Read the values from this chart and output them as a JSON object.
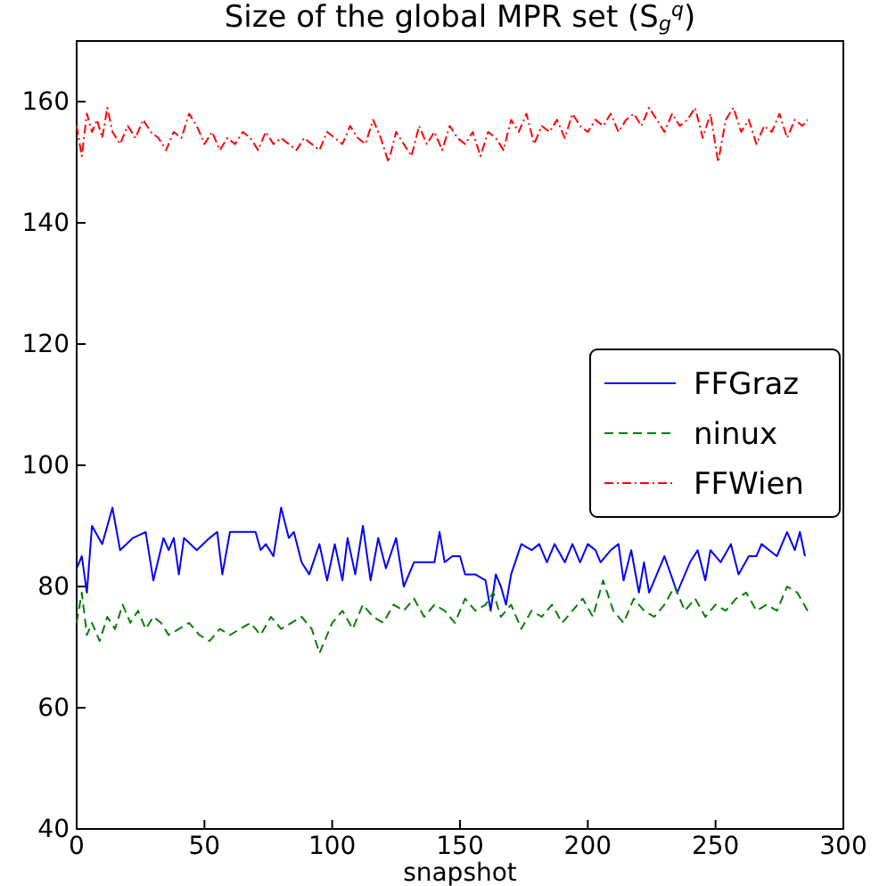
{
  "chart_data": {
    "type": "line",
    "title": "Size of the global MPR set (S$_{g}$$^{q}$)",
    "xlabel": "snapshot",
    "xlim": [
      0,
      300
    ],
    "ylim": [
      40,
      170
    ],
    "xticks": [
      0,
      50,
      100,
      150,
      200,
      250,
      300
    ],
    "yticks": [
      40,
      60,
      80,
      100,
      120,
      140,
      160
    ],
    "legend": "right",
    "grid": false,
    "series": [
      {
        "name": "FFGraz",
        "color": "#0000ff",
        "line_style": "solid",
        "x": [
          0,
          2,
          4,
          6,
          10,
          14,
          17,
          22,
          27,
          30,
          34,
          36,
          38,
          40,
          42,
          47,
          52,
          55,
          57,
          60,
          70,
          72,
          74,
          77,
          80,
          83,
          85,
          88,
          91,
          95,
          98,
          101,
          104,
          106,
          109,
          112,
          115,
          118,
          121,
          125,
          128,
          132,
          140,
          142,
          144,
          147,
          150,
          152,
          156,
          160,
          162,
          164,
          166,
          168,
          170,
          174,
          178,
          181,
          184,
          187,
          191,
          194,
          197,
          200,
          203,
          205,
          209,
          212,
          214,
          217,
          220,
          222,
          224,
          227,
          230,
          235,
          240,
          243,
          246,
          248,
          252,
          256,
          259,
          263,
          266,
          268,
          271,
          274,
          278,
          281,
          283,
          285
        ],
        "values": [
          83,
          85,
          79,
          90,
          87,
          93,
          86,
          88,
          89,
          81,
          88,
          86,
          88,
          82,
          88,
          86,
          88,
          89,
          82,
          89,
          89,
          86,
          87,
          85,
          93,
          88,
          89,
          84,
          82,
          87,
          81,
          87,
          81,
          88,
          82,
          90,
          81,
          88,
          83,
          88,
          80,
          84,
          84,
          89,
          84,
          85,
          85,
          82,
          82,
          81,
          76,
          82,
          80,
          77,
          82,
          87,
          86,
          87,
          84,
          87,
          84,
          87,
          84,
          87,
          86,
          84,
          86,
          87,
          81,
          86,
          79,
          84,
          79,
          82,
          85,
          79,
          84,
          86,
          81,
          86,
          84,
          87,
          82,
          85,
          85,
          87,
          86,
          85,
          89,
          86,
          89,
          85
        ]
      },
      {
        "name": "ninux",
        "color": "#008000",
        "line_style": "dashed",
        "x": [
          0,
          2,
          4,
          6,
          9,
          12,
          15,
          18,
          21,
          24,
          27,
          30,
          33,
          36,
          40,
          44,
          48,
          52,
          56,
          60,
          64,
          68,
          72,
          76,
          80,
          84,
          88,
          92,
          95,
          97,
          100,
          104,
          108,
          112,
          116,
          120,
          124,
          128,
          132,
          136,
          140,
          144,
          148,
          152,
          156,
          160,
          163,
          166,
          170,
          174,
          178,
          182,
          186,
          190,
          194,
          198,
          202,
          206,
          210,
          214,
          218,
          222,
          226,
          230,
          234,
          238,
          242,
          246,
          250,
          254,
          258,
          262,
          266,
          270,
          274,
          278,
          282,
          286
        ],
        "values": [
          74,
          79,
          72,
          74,
          71,
          75,
          73,
          77,
          74,
          76,
          73,
          75,
          74,
          72,
          73,
          74,
          72,
          71,
          73,
          72,
          73,
          74,
          72,
          75,
          73,
          74,
          75,
          73,
          69,
          71,
          74,
          76,
          73,
          77,
          75,
          74,
          77,
          76,
          78,
          75,
          77,
          76,
          74,
          78,
          76,
          77,
          79,
          75,
          77,
          73,
          76,
          75,
          77,
          74,
          76,
          78,
          75,
          81,
          76,
          74,
          78,
          76,
          75,
          77,
          80,
          76,
          78,
          75,
          77,
          76,
          78,
          79,
          76,
          77,
          76,
          80,
          79,
          76
        ]
      },
      {
        "name": "FFWien",
        "color": "#ff0000",
        "line_style": "dashdot",
        "x": [
          0,
          2,
          4,
          6,
          8,
          10,
          12,
          14,
          17,
          20,
          23,
          26,
          29,
          32,
          35,
          38,
          41,
          44,
          47,
          50,
          53,
          56,
          59,
          62,
          65,
          68,
          71,
          74,
          77,
          80,
          83,
          86,
          89,
          92,
          95,
          98,
          101,
          104,
          107,
          110,
          113,
          116,
          119,
          122,
          125,
          128,
          131,
          134,
          137,
          140,
          143,
          146,
          149,
          152,
          155,
          158,
          161,
          164,
          167,
          170,
          173,
          176,
          179,
          182,
          185,
          188,
          191,
          194,
          197,
          200,
          203,
          206,
          209,
          212,
          215,
          218,
          221,
          224,
          227,
          230,
          233,
          236,
          239,
          242,
          245,
          248,
          251,
          254,
          257,
          260,
          263,
          266,
          269,
          272,
          275,
          278,
          281,
          284,
          286
        ],
        "values": [
          156,
          151,
          158,
          155,
          157,
          154,
          159,
          155,
          153,
          156,
          154,
          157,
          155,
          154,
          152,
          155,
          154,
          158,
          156,
          153,
          155,
          152,
          154,
          153,
          155,
          154,
          152,
          155,
          153,
          154,
          153,
          152,
          154,
          153,
          152,
          155,
          154,
          153,
          156,
          154,
          153,
          157,
          154,
          150,
          155,
          153,
          151,
          156,
          153,
          155,
          152,
          156,
          154,
          153,
          155,
          151,
          155,
          154,
          152,
          157,
          155,
          158,
          153,
          156,
          155,
          157,
          154,
          158,
          156,
          155,
          157,
          156,
          158,
          155,
          157,
          158,
          156,
          159,
          157,
          155,
          158,
          156,
          157,
          159,
          154,
          158,
          150,
          157,
          159,
          155,
          157,
          153,
          156,
          155,
          158,
          154,
          157,
          156,
          157
        ]
      }
    ]
  }
}
